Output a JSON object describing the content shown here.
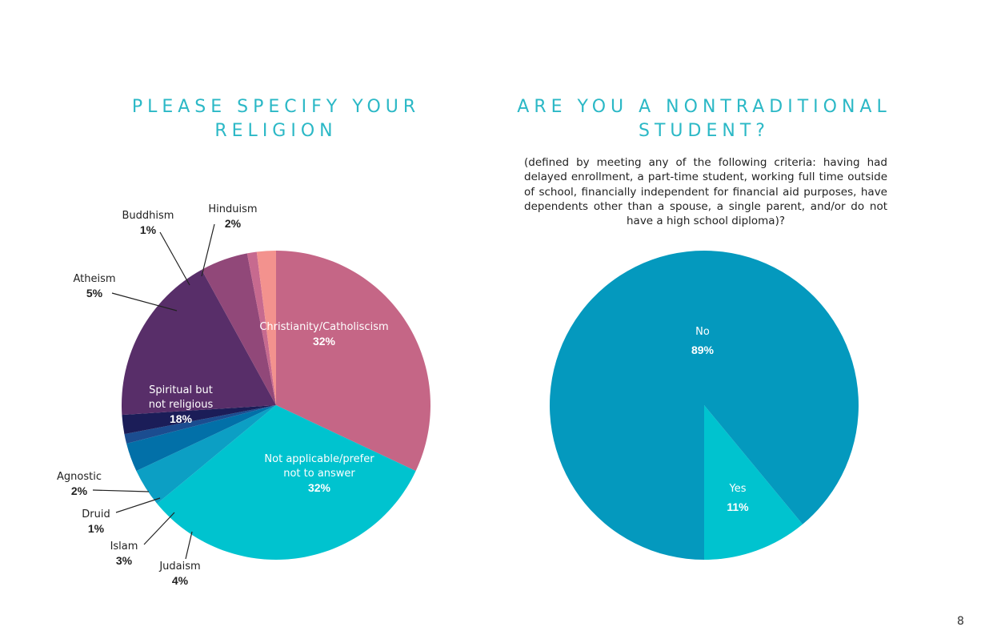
{
  "page_number": "8",
  "chart_data": [
    {
      "type": "pie",
      "title": "PLEASE SPECIFY YOUR RELIGION",
      "slices": [
        {
          "label": "Christianity/Catholiscism",
          "pct_label": "32%",
          "value": 32,
          "color": "#c56686"
        },
        {
          "label": "Not applicable/prefer not to answer",
          "pct_label": "32%",
          "value": 32,
          "color": "#00c3cf"
        },
        {
          "label": "Judaism",
          "pct_label": "4%",
          "value": 4,
          "color": "#0c9fc4"
        },
        {
          "label": "Islam",
          "pct_label": "3%",
          "value": 3,
          "color": "#0270a8"
        },
        {
          "label": "Druid",
          "pct_label": "1%",
          "value": 1,
          "color": "#1b4d90"
        },
        {
          "label": "Agnostic",
          "pct_label": "2%",
          "value": 2,
          "color": "#1b1d58"
        },
        {
          "label": "Spiritual but not religious",
          "pct_label": "18%",
          "value": 18,
          "color": "#582e69"
        },
        {
          "label": "Atheism",
          "pct_label": "5%",
          "value": 5,
          "color": "#914879"
        },
        {
          "label": "Buddhism",
          "pct_label": "1%",
          "value": 1,
          "color": "#c76a8f"
        },
        {
          "label": "Hinduism",
          "pct_label": "2%",
          "value": 2,
          "color": "#f3928e"
        }
      ]
    },
    {
      "type": "pie",
      "title": "ARE YOU A NONTRADITIONAL STUDENT?",
      "subtitle": "(defined by meeting any of the following criteria: having had delayed enrollment, a part-time student, working full time outside of school, financially independent for financial aid purposes, have dependents other than a spouse, a single parent, and/or do not have a high school diploma)?",
      "slices": [
        {
          "label": "Yes",
          "pct_label": "11%",
          "value": 11,
          "color": "#00c3cf"
        },
        {
          "label": "No",
          "pct_label": "89%",
          "value": 89,
          "color": "#0499be"
        }
      ]
    }
  ]
}
